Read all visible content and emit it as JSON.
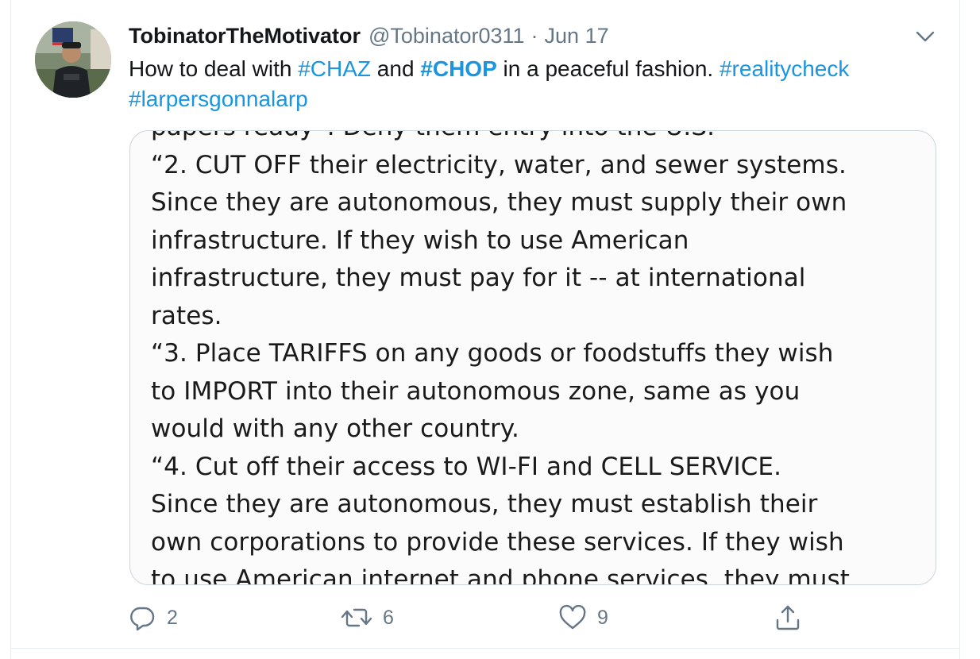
{
  "tweet": {
    "display_name": "TobinatorTheMotivator",
    "handle": "@Tobinator0311",
    "separator": "·",
    "date": "Jun 17",
    "text_segments": [
      {
        "text": "How to deal with ",
        "type": "plain"
      },
      {
        "text": "#CHAZ",
        "type": "hashtag"
      },
      {
        "text": " and ",
        "type": "plain"
      },
      {
        "text": "#CHOP",
        "type": "hashtag-bold"
      },
      {
        "text": " in a peaceful fashion. ",
        "type": "plain"
      },
      {
        "text": "#realitycheck",
        "type": "hashtag"
      },
      {
        "text": "#larpersgonnalarp",
        "type": "hashtag"
      }
    ],
    "media_lines": [
      "papers ready”. Deny them entry into the U.S.",
      "“2. CUT OFF their electricity, water, and sewer systems.",
      "Since they are autonomous, they must supply their own",
      "infrastructure. If they wish to use American",
      "infrastructure, they must pay for it -- at international",
      "rates.",
      "“3. Place TARIFFS on any goods or foodstuffs they wish",
      "to IMPORT into their autonomous zone, same as you",
      "would with any other country.",
      "“4. Cut off their access to WI-FI and CELL SERVICE.",
      "Since they are autonomous, they must establish their",
      "own corporations to provide these services. If they wish",
      "to use American internet and phone services, they must"
    ]
  },
  "actions": {
    "reply_count": "2",
    "retweet_count": "6",
    "like_count": "9"
  },
  "icons": {
    "reply": "reply-icon",
    "retweet": "retweet-icon",
    "like": "heart-icon",
    "share": "share-icon",
    "more": "chevron-down-icon"
  },
  "colors": {
    "link": "#1b95e0",
    "secondary_text": "#657786",
    "border": "#ccd6dd"
  }
}
